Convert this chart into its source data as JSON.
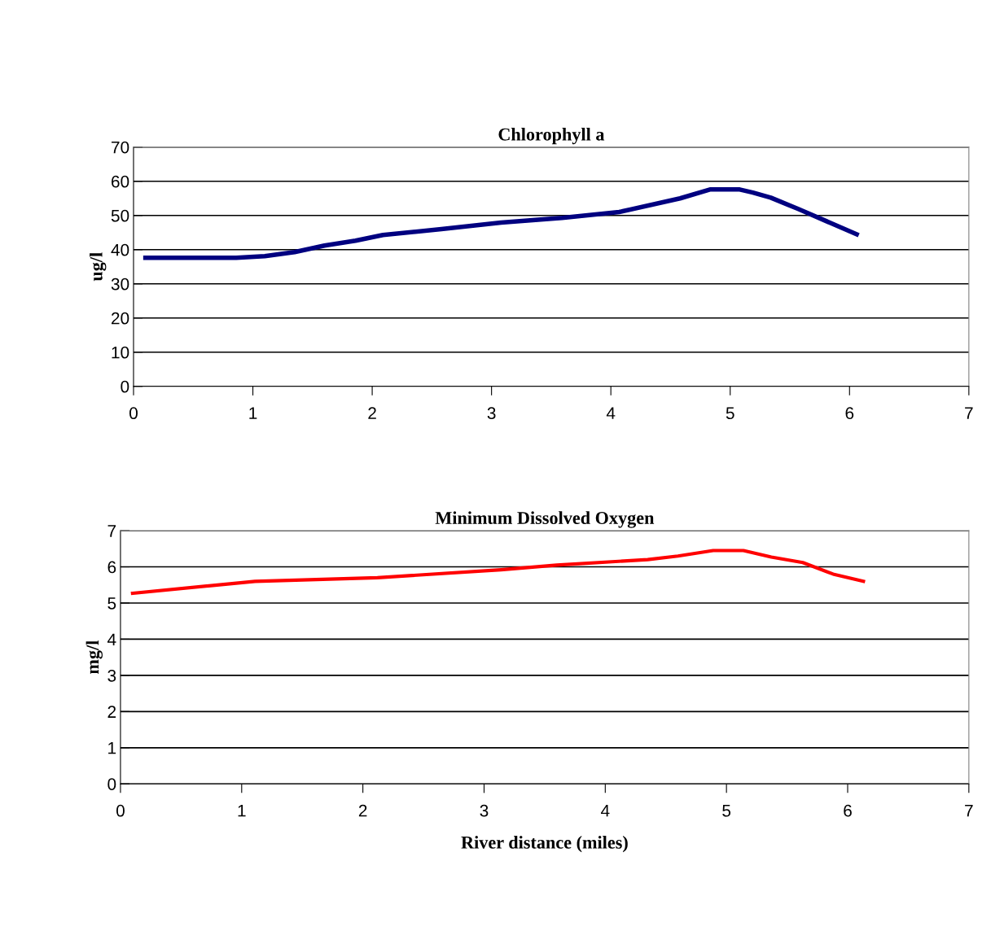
{
  "chart_data": [
    {
      "type": "line",
      "title": "Chlorophyll a",
      "ylabel": "ug/l",
      "xlim": [
        0,
        7
      ],
      "xticks": [
        0,
        1,
        2,
        3,
        4,
        5,
        6,
        7
      ],
      "ylim": [
        0,
        70
      ],
      "yticks": [
        0,
        10,
        20,
        30,
        40,
        50,
        60,
        70
      ],
      "grid": "y",
      "legend": false,
      "marker": "none",
      "line_style": "solid",
      "series": [
        {
          "color": "#000080",
          "x": [
            0.1,
            0.86,
            1.1,
            1.35,
            1.6,
            1.86,
            2.09,
            2.58,
            3.08,
            3.59,
            4.07,
            4.58,
            4.83,
            5.08,
            5.19,
            5.34,
            5.57,
            6.06
          ],
          "values": [
            37.6,
            37.6,
            38.1,
            39.3,
            41.2,
            42.6,
            44.3,
            46.0,
            47.9,
            49.3,
            51.0,
            55.0,
            57.6,
            57.6,
            56.7,
            55.2,
            51.9,
            44.5
          ]
        }
      ]
    },
    {
      "type": "line",
      "title": "Minimum Dissolved Oxygen",
      "xlabel": "River distance (miles)",
      "ylabel": "mg/l",
      "xlim": [
        0,
        7
      ],
      "xticks": [
        0,
        1,
        2,
        3,
        4,
        5,
        6,
        7
      ],
      "ylim": [
        0,
        7
      ],
      "yticks": [
        0,
        1,
        2,
        3,
        4,
        5,
        6,
        7
      ],
      "grid": "y",
      "legend": false,
      "marker": "none",
      "line_style": "solid",
      "series": [
        {
          "color": "#ff0000",
          "x": [
            0.1,
            1.11,
            2.12,
            3.14,
            3.6,
            4.35,
            4.6,
            4.89,
            5.14,
            5.37,
            5.63,
            5.88,
            6.13
          ],
          "values": [
            5.27,
            5.6,
            5.7,
            5.92,
            6.05,
            6.2,
            6.3,
            6.45,
            6.45,
            6.27,
            6.12,
            5.8,
            5.6
          ]
        }
      ]
    }
  ]
}
